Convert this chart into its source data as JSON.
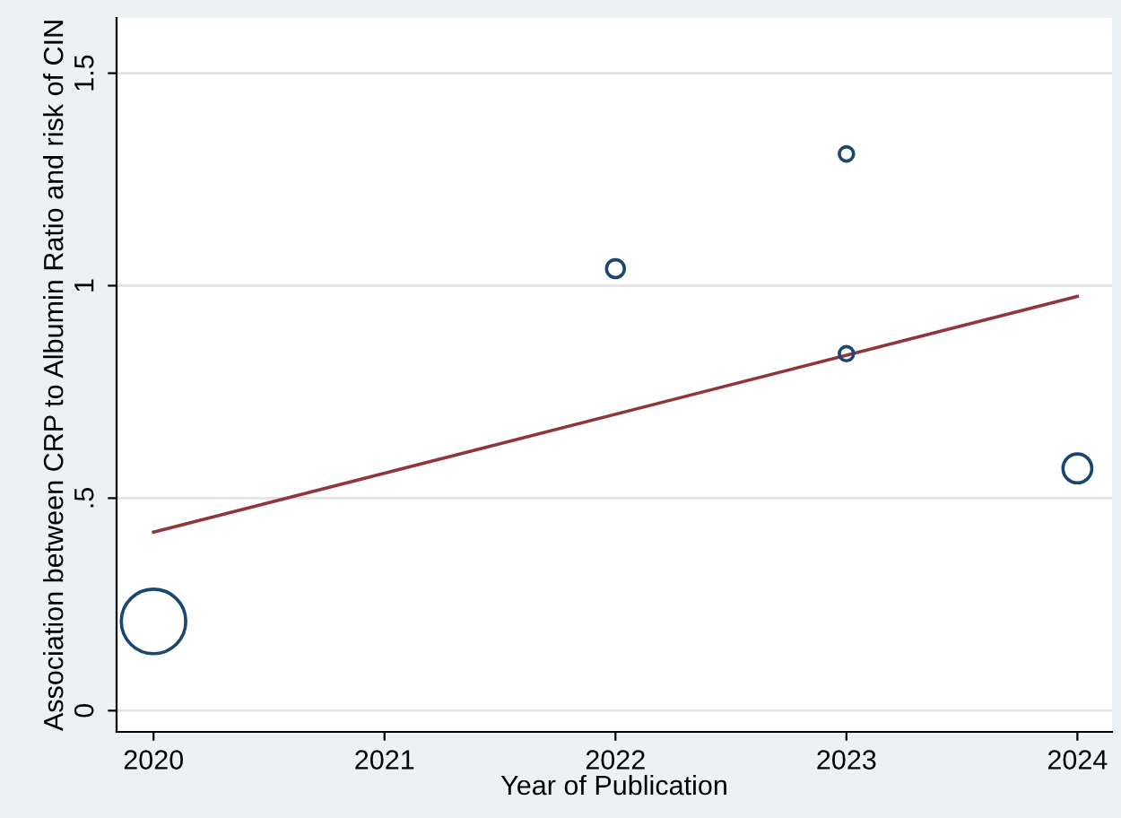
{
  "chart_data": {
    "type": "bubble",
    "xlabel": "Year of Publication",
    "ylabel": "Association between CRP to Albumin Ratio and risk of CIN",
    "series": [
      {
        "color": "#1a476f",
        "x": [
          2020,
          2022,
          2023,
          2023,
          2024
        ],
        "values": [
          0.21,
          1.04,
          1.31,
          0.84,
          0.57
        ],
        "sizes": [
          1,
          0.077,
          0.049,
          0.049,
          0.2
        ]
      },
      {
        "type": "line",
        "color": "#90353b",
        "x": [
          2020,
          2024
        ],
        "values": [
          0.42,
          0.975
        ]
      }
    ],
    "xlim": [
      2019.84,
      2024.15
    ],
    "xticks": [
      2020,
      2021,
      2022,
      2023,
      2024
    ],
    "ylim": [
      -0.05,
      1.63
    ],
    "yticks": [
      {
        "value": 0,
        "label": "0"
      },
      {
        "value": 0.5,
        "label": ".5"
      },
      {
        "value": 1,
        "label": "1"
      },
      {
        "value": 1.5,
        "label": "1.5"
      }
    ],
    "grid": "y",
    "legend": false
  }
}
